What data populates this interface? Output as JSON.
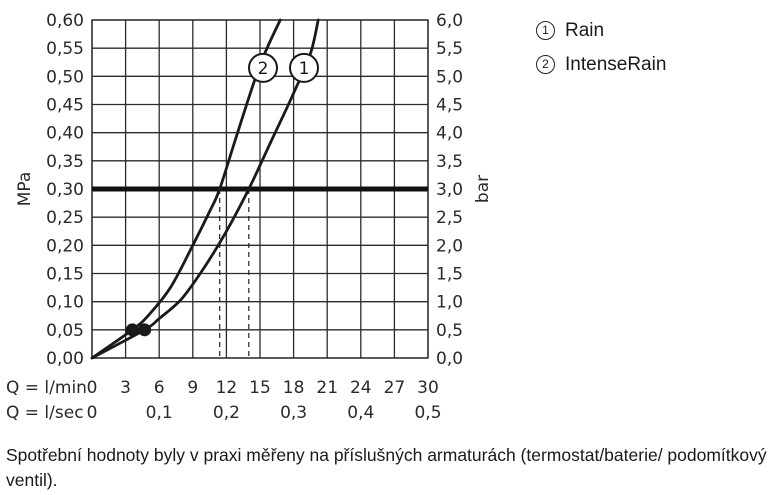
{
  "chart_data": {
    "type": "line",
    "y_left": {
      "label": "MPa",
      "ylim": [
        0,
        0.6
      ],
      "ticks": [
        "0,00",
        "0,05",
        "0,10",
        "0,15",
        "0,20",
        "0,25",
        "0,30",
        "0,35",
        "0,40",
        "0,45",
        "0,50",
        "0,55",
        "0,60"
      ]
    },
    "y_right": {
      "label": "bar",
      "ticks": [
        "0,0",
        "0,5",
        "1,0",
        "1,5",
        "2,0",
        "2,5",
        "3,0",
        "3,5",
        "4,0",
        "4,5",
        "5,0",
        "5,5",
        "6,0"
      ]
    },
    "x_axes": [
      {
        "label": "Q = l/min",
        "ticks": [
          "0",
          "3",
          "6",
          "9",
          "12",
          "15",
          "18",
          "21",
          "24",
          "27",
          "30"
        ]
      },
      {
        "label": "Q = l/sec",
        "ticks": [
          "0",
          "0,1",
          "0,2",
          "0,3",
          "0,4",
          "0,5"
        ]
      }
    ],
    "xlim": [
      0,
      30
    ],
    "grid": true,
    "reference_line": {
      "y": 0.3
    },
    "series": [
      {
        "id": "2",
        "name": "IntenseRain",
        "x": [
          0,
          3.6,
          5,
          7,
          9,
          10.5,
          11.4,
          13,
          15,
          16.8
        ],
        "y": [
          0,
          0.05,
          0.075,
          0.125,
          0.2,
          0.26,
          0.3,
          0.4,
          0.52,
          0.6
        ],
        "marker_point": [
          3.6,
          0.05
        ],
        "flow_at_reference": 11.4
      },
      {
        "id": "1",
        "name": "Rain",
        "x": [
          0,
          4.7,
          6,
          8,
          10,
          12,
          14,
          16,
          18,
          19.5,
          20.2
        ],
        "y": [
          0,
          0.05,
          0.07,
          0.105,
          0.16,
          0.225,
          0.3,
          0.385,
          0.47,
          0.54,
          0.6
        ],
        "marker_point": [
          4.7,
          0.05
        ],
        "flow_at_reference": 14
      }
    ]
  },
  "legend": [
    {
      "num": "1",
      "label": "Rain"
    },
    {
      "num": "2",
      "label": "IntenseRain"
    }
  ],
  "footnote": "Spotřební hodnoty byly v praxi měřeny na příslušných armaturách (termostat/baterie/ podomítkový ventil)."
}
